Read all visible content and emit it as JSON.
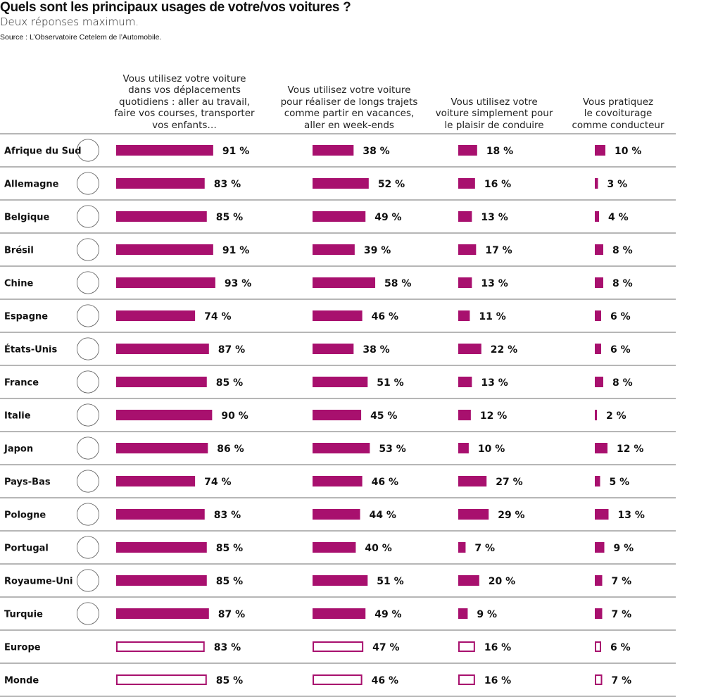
{
  "header": {
    "title": "Quels sont les principaux usages de votre/vos voitures ?",
    "subtitle": "Deux réponses maximum.",
    "source": "Source : L’Observatoire Cetelem de l’Automobile."
  },
  "colors": {
    "bar_fill": "#A8106E",
    "bar_outline": "#A8106E",
    "divider": "#8a8a8a",
    "text": "#111111"
  },
  "chart_data": {
    "type": "table",
    "title": "Quels sont les principaux usages de votre/vos voitures ?",
    "subtitle": "Deux réponses maximum.",
    "unit": "%",
    "columns": [
      "Vous utilisez votre voiture dans vos déplacements quotidiens : aller au travail, faire vos courses, transporter vos enfants…",
      "Vous utilisez votre voiture pour réaliser de longs trajets comme partir en vacances, aller en week-ends",
      "Vous utilisez votre voiture simplement pour le plaisir de conduire",
      "Vous pratiquez le covoiturage comme conducteur"
    ],
    "column_lines": [
      [
        "Vous utilisez votre voiture",
        "dans vos déplacements",
        "quotidiens : aller au travail,",
        "faire vos courses, transporter",
        "vos enfants…"
      ],
      [
        "Vous utilisez votre voiture",
        "pour réaliser de longs trajets",
        "comme partir en vacances,",
        "aller en week-ends"
      ],
      [
        "Vous utilisez votre",
        "voiture simplement pour",
        "le plaisir de conduire"
      ],
      [
        "Vous pratiquez",
        "le covoiturage",
        "comme conducteur"
      ]
    ],
    "rows": [
      {
        "label": "Afrique du Sud",
        "flag": "south-africa",
        "values": [
          91,
          38,
          18,
          10
        ],
        "aggregate": false
      },
      {
        "label": "Allemagne",
        "flag": "germany",
        "values": [
          83,
          52,
          16,
          3
        ],
        "aggregate": false
      },
      {
        "label": "Belgique",
        "flag": "belgium",
        "values": [
          85,
          49,
          13,
          4
        ],
        "aggregate": false
      },
      {
        "label": "Brésil",
        "flag": "brazil",
        "values": [
          91,
          39,
          17,
          8
        ],
        "aggregate": false
      },
      {
        "label": "Chine",
        "flag": "china",
        "values": [
          93,
          58,
          13,
          8
        ],
        "aggregate": false
      },
      {
        "label": "Espagne",
        "flag": "spain",
        "values": [
          74,
          46,
          11,
          6
        ],
        "aggregate": false
      },
      {
        "label": "États-Unis",
        "flag": "usa",
        "values": [
          87,
          38,
          22,
          6
        ],
        "aggregate": false
      },
      {
        "label": "France",
        "flag": "france",
        "values": [
          85,
          51,
          13,
          8
        ],
        "aggregate": false
      },
      {
        "label": "Italie",
        "flag": "italy",
        "values": [
          90,
          45,
          12,
          2
        ],
        "aggregate": false
      },
      {
        "label": "Japon",
        "flag": "japan",
        "values": [
          86,
          53,
          10,
          12
        ],
        "aggregate": false
      },
      {
        "label": "Pays-Bas",
        "flag": "netherlands",
        "values": [
          74,
          46,
          27,
          5
        ],
        "aggregate": false
      },
      {
        "label": "Pologne",
        "flag": "poland",
        "values": [
          83,
          44,
          29,
          13
        ],
        "aggregate": false
      },
      {
        "label": "Portugal",
        "flag": "portugal",
        "values": [
          85,
          40,
          7,
          9
        ],
        "aggregate": false
      },
      {
        "label": "Royaume-Uni",
        "flag": "uk",
        "values": [
          85,
          51,
          20,
          7
        ],
        "aggregate": false
      },
      {
        "label": "Turquie",
        "flag": "turkey",
        "values": [
          87,
          49,
          9,
          7
        ],
        "aggregate": false
      },
      {
        "label": "Europe",
        "flag": null,
        "values": [
          83,
          47,
          16,
          6
        ],
        "aggregate": true
      },
      {
        "label": "Monde",
        "flag": null,
        "values": [
          85,
          46,
          16,
          7
        ],
        "aggregate": true
      }
    ]
  }
}
